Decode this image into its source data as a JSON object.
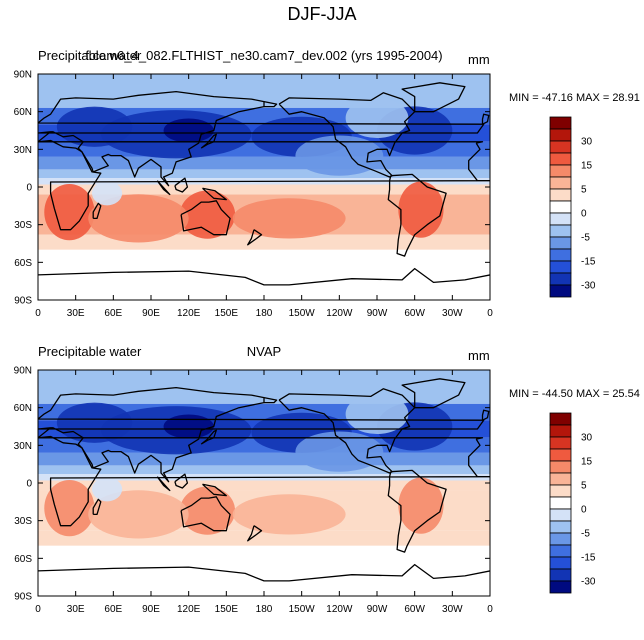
{
  "title": "DJF-JJA",
  "panels": [
    {
      "left_label": "Precipitable water",
      "center_label": "f.cam6_4_082.FLTHIST_ne30.cam7_dev.002 (yrs 1995-2004)",
      "units": "mm",
      "minmax": "MIN = -47.16 MAX =  28.91"
    },
    {
      "left_label": "Precipitable water",
      "center_label": "NVAP",
      "units": "mm",
      "minmax": "MIN = -44.50 MAX =  25.54"
    }
  ],
  "lat_ticks": [
    "90N",
    "60N",
    "30N",
    "0",
    "30S",
    "60S",
    "90S"
  ],
  "lon_ticks": [
    "0",
    "30E",
    "60E",
    "90E",
    "120E",
    "150E",
    "180",
    "150W",
    "120W",
    "90W",
    "60W",
    "30W",
    "0"
  ],
  "colorbar": {
    "labels": [
      "30",
      "15",
      "5",
      "0",
      "-5",
      "-15",
      "-30"
    ],
    "colors": [
      "#7f0000",
      "#b3160b",
      "#d73422",
      "#ef5a3f",
      "#f58a69",
      "#f9b497",
      "#fcdcc8",
      "#ffffff",
      "#d4e2f7",
      "#9ec2f0",
      "#6a97e6",
      "#3f6fe0",
      "#2450d8",
      "#1234b4",
      "#000a80"
    ]
  }
}
